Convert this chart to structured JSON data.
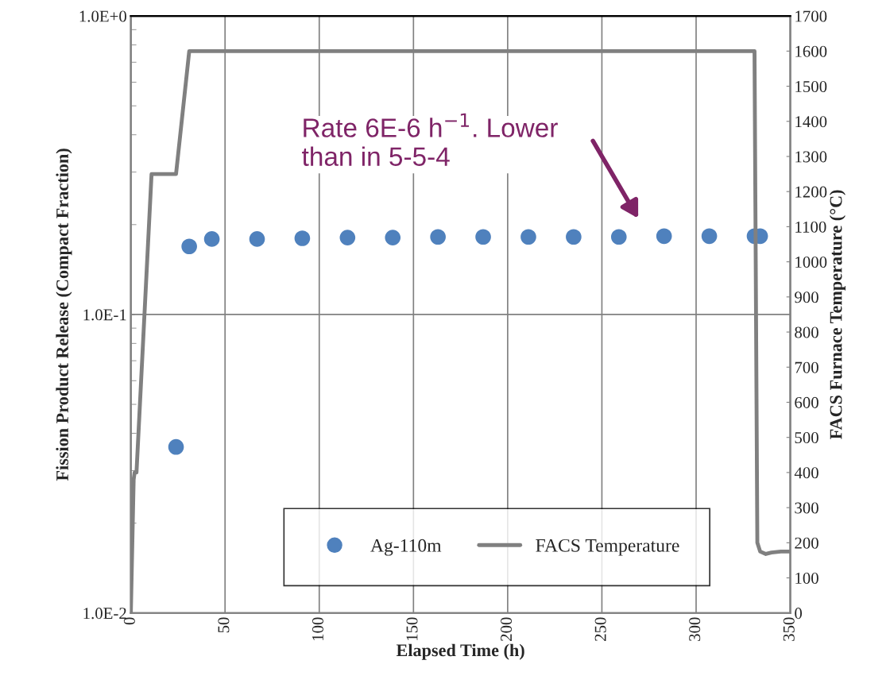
{
  "chart_data": {
    "type": "scatter",
    "xlabel": "Elapsed Time (h)",
    "ylabel": "Fission Product Release (Compact Fraction)",
    "y2label": "FACS Furnace Temperature (°C)",
    "series": [
      {
        "name": "Ag-110m",
        "axis": "y",
        "color": "#4f81bd",
        "marker": "circle",
        "x": [
          24,
          31,
          43,
          67,
          91,
          115,
          139,
          163,
          187,
          211,
          235,
          259,
          283,
          307,
          331,
          334
        ],
        "values": [
          0.036,
          0.169,
          0.179,
          0.179,
          0.18,
          0.181,
          0.181,
          0.182,
          0.182,
          0.182,
          0.182,
          0.182,
          0.183,
          0.183,
          0.183,
          0.183
        ]
      },
      {
        "name": "FACS Temperature",
        "type": "line",
        "axis": "y2",
        "color": "#808080",
        "line_style": "solid",
        "marker": "none",
        "x": [
          0,
          1.5,
          2,
          3,
          11,
          24,
          31,
          100,
          200,
          331,
          332.5,
          334,
          337,
          340,
          345,
          350
        ],
        "values": [
          0,
          380,
          400,
          400,
          1250,
          1250,
          1600,
          1600,
          1600,
          1600,
          200,
          175,
          168,
          172,
          175,
          175
        ]
      }
    ],
    "xlim": [
      0,
      350
    ],
    "xticks": [
      0,
      50,
      100,
      150,
      200,
      250,
      300,
      350
    ],
    "log": "y",
    "ylim": [
      0.01,
      1
    ],
    "yticks": [
      {
        "value": 0.01,
        "label": "1.0E-2"
      },
      {
        "value": 0.1,
        "label": "1.0E-1"
      },
      {
        "value": 1,
        "label": "1.0E+0"
      }
    ],
    "y2lim": [
      0,
      1700
    ],
    "y2ticks": [
      0,
      100,
      200,
      300,
      400,
      500,
      600,
      700,
      800,
      900,
      1000,
      1100,
      1200,
      1300,
      1400,
      1500,
      1600,
      1700
    ],
    "grid": true,
    "legend": "bottom",
    "annotations": [
      "Rate 6E-6 h$^{−1}$. Lower\nthan in 5-5-4"
    ]
  }
}
